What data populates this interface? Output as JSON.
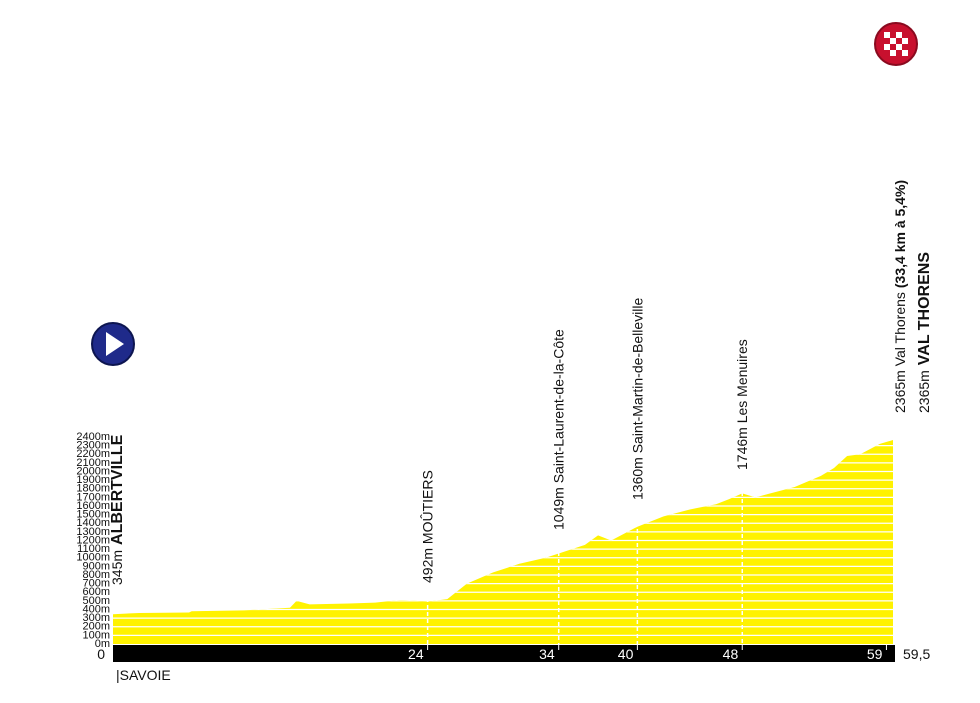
{
  "chart_data": {
    "type": "area",
    "color": "#fff200",
    "x": [
      0,
      2,
      5.8,
      6,
      10,
      13.5,
      14,
      15,
      18,
      20,
      22,
      24,
      25.5,
      27,
      29,
      31,
      33,
      34,
      36,
      37,
      38,
      39,
      40,
      42,
      44,
      46,
      47,
      48,
      49,
      50,
      52,
      54,
      55,
      56,
      57,
      58.5,
      59.5
    ],
    "values": [
      345,
      360,
      365,
      380,
      390,
      420,
      500,
      460,
      470,
      480,
      510,
      492,
      520,
      700,
      830,
      930,
      1000,
      1049,
      1150,
      1260,
      1200,
      1280,
      1360,
      1480,
      1560,
      1620,
      1680,
      1746,
      1700,
      1740,
      1820,
      1950,
      2040,
      2180,
      2200,
      2320,
      2365
    ],
    "xlim": [
      0,
      59.5
    ],
    "xticks": [
      0,
      24,
      34,
      40,
      48,
      59,
      {
        "value": 59.5,
        "label": "59,5"
      }
    ],
    "ylim": [
      0,
      2400
    ],
    "yticks": [
      {
        "value": 0,
        "label": "0m"
      },
      {
        "value": 100,
        "label": "100m"
      },
      {
        "value": 200,
        "label": "200m"
      },
      {
        "value": 300,
        "label": "300m"
      },
      {
        "value": 400,
        "label": "400m"
      },
      {
        "value": 500,
        "label": "500m"
      },
      {
        "value": 600,
        "label": "600m"
      },
      {
        "value": 700,
        "label": "700m"
      },
      {
        "value": 800,
        "label": "800m"
      },
      {
        "value": 900,
        "label": "900m"
      },
      {
        "value": 1000,
        "label": "1000m"
      },
      {
        "value": 1100,
        "label": "1100m"
      },
      {
        "value": 1200,
        "label": "1200m"
      },
      {
        "value": 1300,
        "label": "1300m"
      },
      {
        "value": 1400,
        "label": "1400m"
      },
      {
        "value": 1500,
        "label": "1500m"
      },
      {
        "value": 1600,
        "label": "1600m"
      },
      {
        "value": 1700,
        "label": "1700m"
      },
      {
        "value": 1800,
        "label": "1800m"
      },
      {
        "value": 1900,
        "label": "1900m"
      },
      {
        "value": 2000,
        "label": "2000m"
      },
      {
        "value": 2100,
        "label": "2100m"
      },
      {
        "value": 2200,
        "label": "2200m"
      },
      {
        "value": 2300,
        "label": "2300m"
      },
      {
        "value": 2400,
        "label": "2400m"
      }
    ],
    "grid": true,
    "start": {
      "elevation_text": "345m",
      "name": "ALBERTVILLE"
    },
    "waypoints": [
      {
        "x": 24,
        "text": "492m MOÛTIERS"
      },
      {
        "x": 34,
        "text": "1049m Saint-Laurent-de-la-Côte"
      },
      {
        "x": 40,
        "text": "1360m Saint-Martin-de-Belleville"
      },
      {
        "x": 48,
        "text": "1746m Les Menuires"
      }
    ],
    "finish_climb": {
      "text": "2365m Val Thorens",
      "detail": "(33,4 km à 5,4%)"
    },
    "finish": {
      "elevation_text": "2365m",
      "name": "VAL THORENS"
    },
    "region": "|SAVOIE"
  }
}
